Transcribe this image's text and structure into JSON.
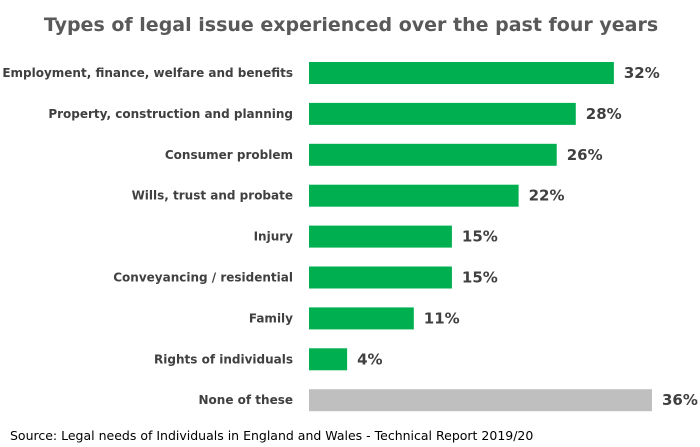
{
  "chart_data": {
    "type": "bar",
    "orientation": "horizontal",
    "title": "Types of legal issue experienced over the past four years",
    "categories": [
      "Employment, finance, welfare and benefits",
      "Property, construction and planning",
      "Consumer problem",
      "Wills, trust and probate",
      "Injury",
      "Conveyancing / residential",
      "Family",
      "Rights of individuals",
      "None of these"
    ],
    "values": [
      32,
      28,
      26,
      22,
      15,
      15,
      11,
      4,
      36
    ],
    "value_labels": [
      "32%",
      "28%",
      "26%",
      "22%",
      "15%",
      "15%",
      "11%",
      "4%",
      "36%"
    ],
    "unit": "%",
    "xlim": [
      0,
      36
    ],
    "grid": false,
    "colors": [
      "#00b050",
      "#00b050",
      "#00b050",
      "#00b050",
      "#00b050",
      "#00b050",
      "#00b050",
      "#00b050",
      "#bfbfbf"
    ]
  },
  "source": "Source: Legal needs of Individuals in England and Wales - Technical Report 2019/20"
}
